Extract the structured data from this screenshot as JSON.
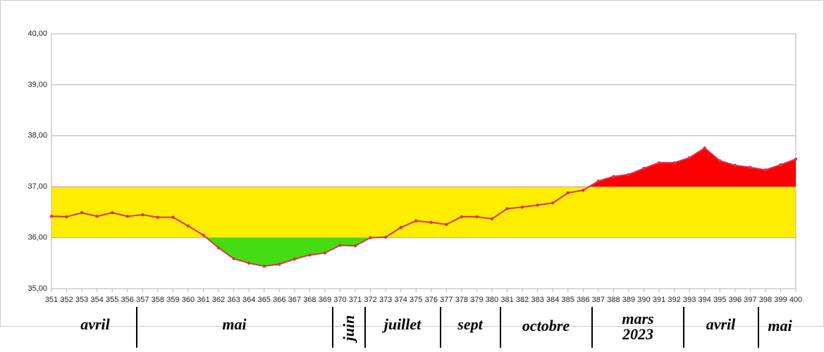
{
  "chart_data": {
    "type": "line",
    "categories": [
      "351",
      "352",
      "353",
      "354",
      "355",
      "356",
      "357",
      "358",
      "359",
      "360",
      "361",
      "362",
      "363",
      "364",
      "365",
      "366",
      "367",
      "368",
      "369",
      "370",
      "371",
      "372",
      "373",
      "374",
      "375",
      "376",
      "377",
      "378",
      "379",
      "380",
      "381",
      "382",
      "383",
      "384",
      "385",
      "386",
      "387",
      "388",
      "389",
      "390",
      "391",
      "392",
      "393",
      "394",
      "395",
      "396",
      "397",
      "398",
      "399",
      "400"
    ],
    "series": [
      {
        "color": "#e0304e",
        "values": [
          36.42,
          36.41,
          36.49,
          36.42,
          36.49,
          36.42,
          36.45,
          36.4,
          36.4,
          36.23,
          36.05,
          35.8,
          35.59,
          35.5,
          35.44,
          35.48,
          35.58,
          35.66,
          35.7,
          35.85,
          35.84,
          36.0,
          36.01,
          36.2,
          36.33,
          36.3,
          36.26,
          36.41,
          36.41,
          36.37,
          36.57,
          36.6,
          36.64,
          36.68,
          36.88,
          36.93,
          37.11,
          37.2,
          37.24,
          37.36,
          37.47,
          37.47,
          37.57,
          37.76,
          37.51,
          37.42,
          37.38,
          37.33,
          37.43,
          37.54
        ]
      }
    ],
    "ylim": [
      35,
      40
    ],
    "yticks": [
      {
        "value": 35,
        "label": "35,00"
      },
      {
        "value": 36,
        "label": "36,00"
      },
      {
        "value": 37,
        "label": "37,00"
      },
      {
        "value": 38,
        "label": "38,00"
      },
      {
        "value": 39,
        "label": "39,00"
      },
      {
        "value": 40,
        "label": "40,00"
      }
    ],
    "grid": true,
    "band": [
      36,
      37
    ],
    "band_color": "#ffee00",
    "below_color": "#44dd11",
    "above_color": "#ff0000",
    "months": [
      "avril",
      "mai",
      "juin",
      "juillet",
      "sept",
      "octobre",
      "mars 2023",
      "avril",
      "mai"
    ]
  }
}
